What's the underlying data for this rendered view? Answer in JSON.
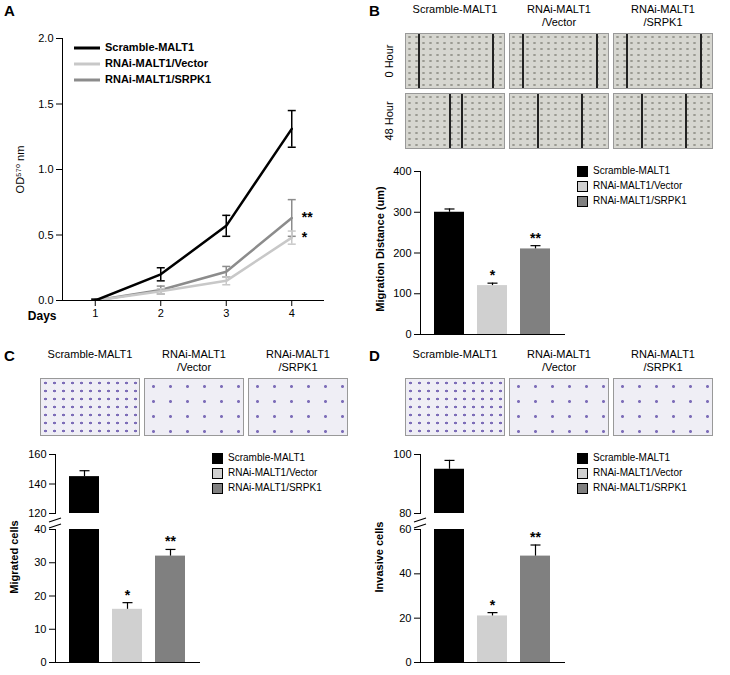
{
  "chart_data": [
    {
      "panel": "A",
      "type": "line",
      "xlabel": "Days",
      "ylabel": "OD⁵⁷⁰ nm",
      "x": [
        1,
        2,
        3,
        4
      ],
      "xlim": [
        0.5,
        4.5
      ],
      "xticks": [
        1,
        2,
        3,
        4
      ],
      "ylim": [
        0,
        2
      ],
      "yticks": [
        {
          "value": 0,
          "label": "0.0"
        },
        {
          "value": 0.5,
          "label": "0.5"
        },
        {
          "value": 1,
          "label": "1.0"
        },
        {
          "value": 1.5,
          "label": "1.5"
        },
        {
          "value": 2,
          "label": "2.0"
        }
      ],
      "legend": "top-left",
      "series": [
        {
          "name": "Scramble-MALT1",
          "color": "#000000",
          "values": [
            0.0,
            0.2,
            0.57,
            1.31
          ],
          "errors": [
            0.01,
            0.05,
            0.08,
            0.14
          ]
        },
        {
          "name": "RNAi-MALT1/Vector",
          "color": "#c8c8c8",
          "values": [
            0.0,
            0.07,
            0.15,
            0.48
          ],
          "errors": [
            0.01,
            0.02,
            0.03,
            0.05
          ]
        },
        {
          "name": "RNAi-MALT1/SRPK1",
          "color": "#8c8c8c",
          "values": [
            0.0,
            0.08,
            0.22,
            0.63
          ],
          "errors": [
            0.01,
            0.03,
            0.04,
            0.14
          ]
        }
      ],
      "annotations": [
        {
          "text": "**",
          "series": "RNAi-MALT1/SRPK1"
        },
        {
          "text": "*",
          "series": "RNAi-MALT1/Vector"
        }
      ]
    },
    {
      "panel": "B",
      "type": "bar",
      "images": {
        "columns": [
          "Scramble-MALT1",
          "RNAi-MALT1/Vector",
          "RNAi-MALT1/SRPK1"
        ],
        "rows": [
          "0 Hour",
          "48 Hour"
        ]
      },
      "ylabel": "Migration Distance (um)",
      "categories": [
        "Scramble-MALT1",
        "RNAi-MALT1/Vector",
        "RNAi-MALT1/SRPK1"
      ],
      "values": [
        300,
        120,
        210
      ],
      "errors": [
        8,
        6,
        8
      ],
      "significance": [
        null,
        "*",
        "**"
      ],
      "colors": [
        "#000000",
        "#d0d0d0",
        "#808080"
      ],
      "ylim": [
        0,
        400
      ],
      "yticks": [
        0,
        100,
        200,
        300,
        400
      ],
      "tick_labels": "y",
      "legend": "right"
    },
    {
      "panel": "C",
      "type": "bar",
      "images": {
        "columns": [
          "Scramble-MALT1",
          "RNAi-MALT1/Vector",
          "RNAi-MALT1/SRPK1"
        ]
      },
      "ylabel": "Migrated cells",
      "categories": [
        "Scramble-MALT1",
        "RNAi-MALT1/Vector",
        "RNAi-MALT1/SRPK1"
      ],
      "values": [
        145,
        16,
        32
      ],
      "errors": [
        4,
        2,
        2
      ],
      "significance": [
        null,
        "*",
        "**"
      ],
      "colors": [
        "#000000",
        "#d0d0d0",
        "#808080"
      ],
      "ylim": [
        0,
        160
      ],
      "y_break": [
        40,
        120
      ],
      "yticks": [
        0,
        10,
        20,
        30,
        40,
        120,
        140,
        160
      ],
      "tick_labels": "y",
      "legend": "right"
    },
    {
      "panel": "D",
      "type": "bar",
      "images": {
        "columns": [
          "Scramble-MALT1",
          "RNAi-MALT1/Vector",
          "RNAi-MALT1/SRPK1"
        ]
      },
      "ylabel": "Invasive cells",
      "categories": [
        "Scramble-MALT1",
        "RNAi-MALT1/Vector",
        "RNAi-MALT1/SRPK1"
      ],
      "values": [
        95,
        21,
        48
      ],
      "errors": [
        3,
        1.5,
        5
      ],
      "significance": [
        null,
        "*",
        "**"
      ],
      "colors": [
        "#000000",
        "#d0d0d0",
        "#808080"
      ],
      "ylim": [
        0,
        100
      ],
      "y_break": [
        60,
        80
      ],
      "yticks": [
        0,
        20,
        40,
        60,
        80,
        100
      ],
      "tick_labels": "y",
      "legend": "right"
    }
  ]
}
